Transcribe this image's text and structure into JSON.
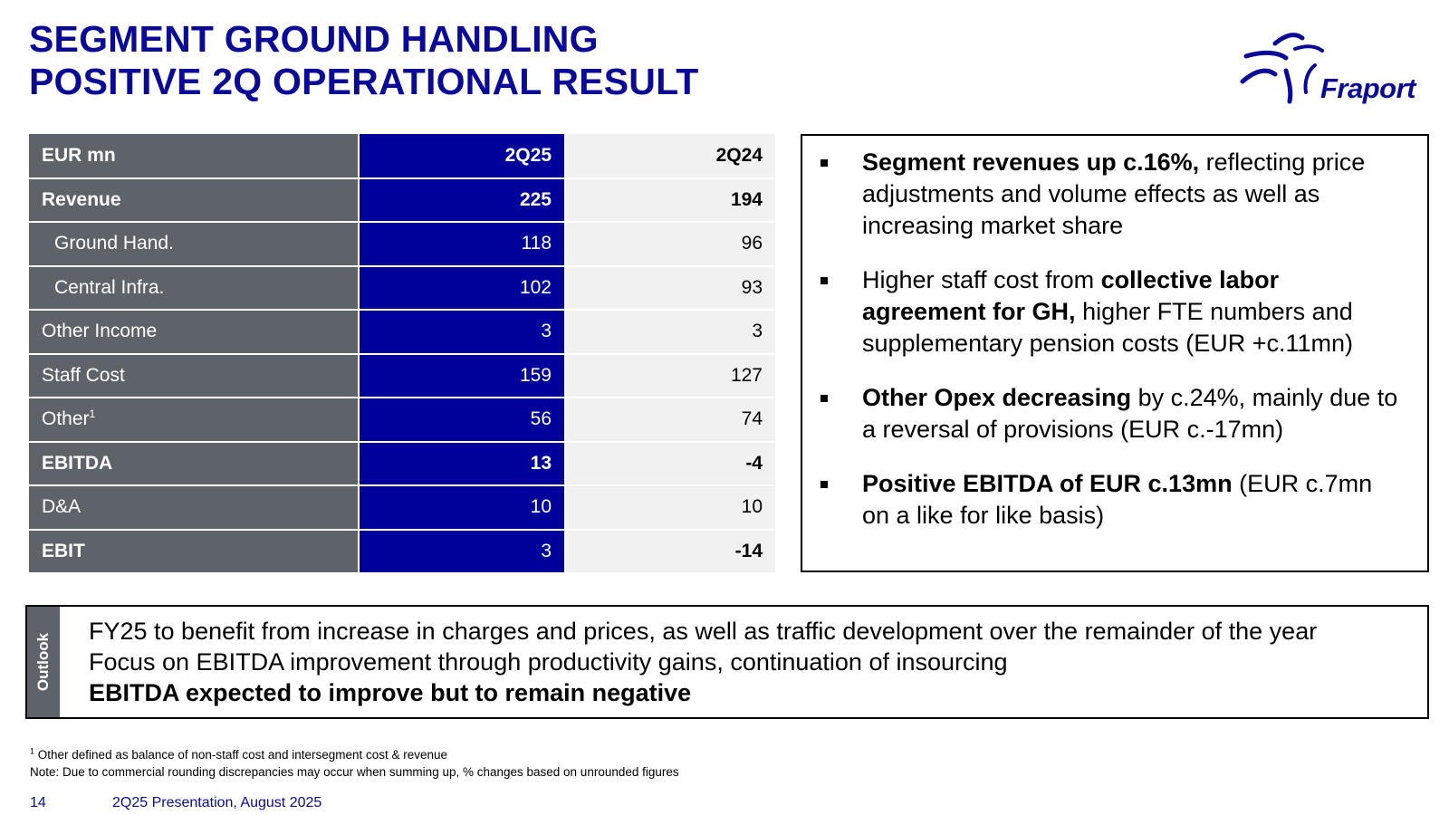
{
  "title": {
    "line1": "SEGMENT GROUND HANDLING",
    "line2": "POSITIVE 2Q OPERATIONAL RESULT"
  },
  "logo": {
    "text": "Fraport"
  },
  "table": {
    "header": {
      "label": "EUR mn",
      "current": "2Q25",
      "prior": "2Q24"
    },
    "rows": [
      {
        "label": "Revenue",
        "current": "225",
        "prior": "194"
      },
      {
        "label": "Ground Hand.",
        "current": "118",
        "prior": "96"
      },
      {
        "label": "Central Infra.",
        "current": "102",
        "prior": "93"
      },
      {
        "label": "Other Income",
        "current": "3",
        "prior": "3"
      },
      {
        "label": "Staff Cost",
        "current": "159",
        "prior": "127"
      },
      {
        "label": "Other",
        "sup": "1",
        "current": "56",
        "prior": "74"
      },
      {
        "label": "EBITDA",
        "current": "13",
        "prior": "-4"
      },
      {
        "label": "D&A",
        "current": "10",
        "prior": "10"
      },
      {
        "label": "EBIT",
        "current": "3",
        "prior": "-14"
      }
    ]
  },
  "bullets": [
    {
      "bold": "Segment revenues up c.16%,",
      "text": " reflecting price adjustments and volume effects as well as increasing market share"
    },
    {
      "pre": "Higher staff cost from ",
      "bold": "collective labor agreement for GH,",
      "text": " higher FTE numbers and supplementary pension costs (EUR +c.11mn)"
    },
    {
      "bold": "Other Opex decreasing",
      "text": " by c.24%, mainly due to a reversal of provisions (EUR c.-17mn)"
    },
    {
      "bold": "Positive EBITDA of EUR c.13mn",
      "text": " (EUR c.7mn on a like for like basis)"
    }
  ],
  "outlook": {
    "tab": "Outlook",
    "line1": "FY25 to benefit from increase in charges and prices, as well as traffic development over the remainder of the year",
    "line2": "Focus on EBITDA improvement through productivity gains, continuation of insourcing",
    "line3": "EBITDA expected to improve but to remain negative"
  },
  "footnotes": {
    "note1_sup": "1",
    "note1": " Other defined as balance of non-staff cost and intersegment cost & revenue",
    "note2": "Note: Due to commercial rounding discrepancies may occur when summing up, % changes based on unrounded figures"
  },
  "footer": {
    "page": "14",
    "text": "2Q25 Presentation, August 2025"
  },
  "colors": {
    "brand_blue": "#0a0a96",
    "table_blue": "#00009a",
    "table_grey": "#5e636a",
    "light_grey": "#f1f1f1"
  }
}
